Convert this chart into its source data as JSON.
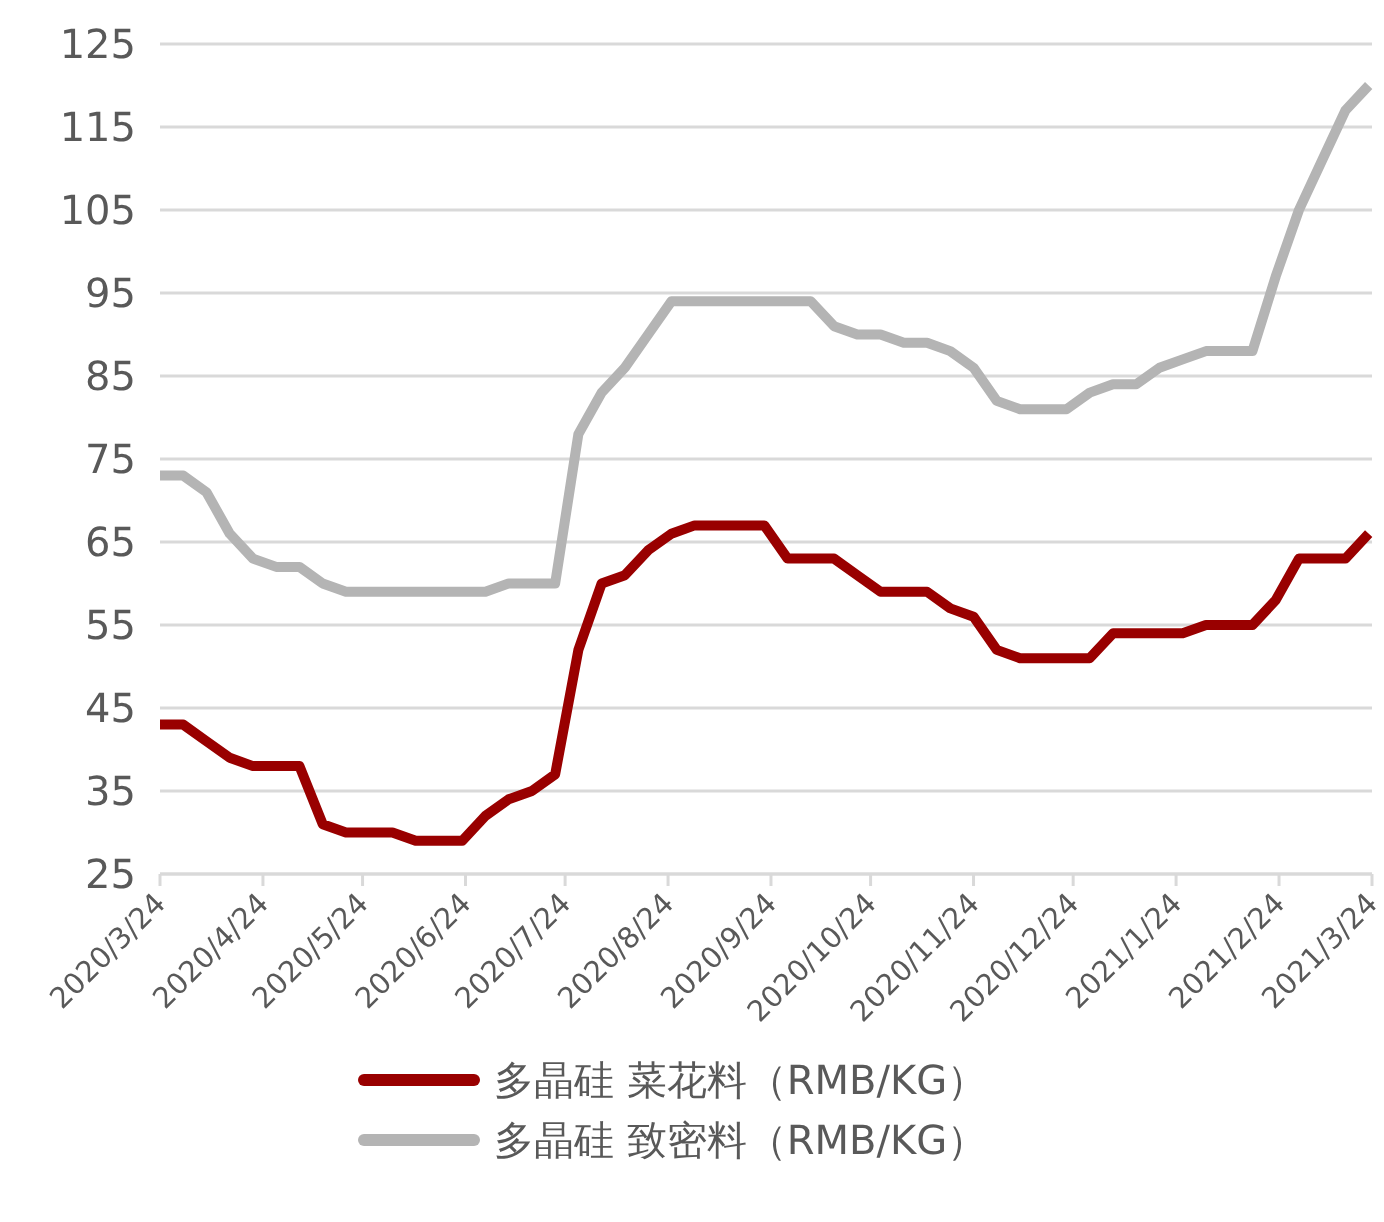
{
  "chart_data": {
    "type": "line",
    "x": [
      "2020-03-24",
      "2020-03-31",
      "2020-04-07",
      "2020-04-14",
      "2020-04-21",
      "2020-04-28",
      "2020-05-05",
      "2020-05-12",
      "2020-05-19",
      "2020-05-26",
      "2020-06-02",
      "2020-06-09",
      "2020-06-16",
      "2020-06-23",
      "2020-06-30",
      "2020-07-07",
      "2020-07-14",
      "2020-07-21",
      "2020-07-28",
      "2020-08-04",
      "2020-08-11",
      "2020-08-18",
      "2020-08-25",
      "2020-09-01",
      "2020-09-08",
      "2020-09-15",
      "2020-09-22",
      "2020-09-29",
      "2020-10-06",
      "2020-10-13",
      "2020-10-20",
      "2020-10-27",
      "2020-11-03",
      "2020-11-10",
      "2020-11-17",
      "2020-11-24",
      "2020-12-01",
      "2020-12-08",
      "2020-12-15",
      "2020-12-22",
      "2020-12-29",
      "2021-01-05",
      "2021-01-12",
      "2021-01-19",
      "2021-01-26",
      "2021-02-02",
      "2021-02-09",
      "2021-02-16",
      "2021-02-23",
      "2021-03-02",
      "2021-03-09",
      "2021-03-16",
      "2021-03-23"
    ],
    "series": [
      {
        "name": "多晶硅 菜花料（RMB/KG）",
        "color": "#990000",
        "values": [
          43,
          43,
          41,
          39,
          38,
          38,
          38,
          31,
          30,
          30,
          30,
          29,
          29,
          29,
          32,
          34,
          35,
          37,
          52,
          60,
          61,
          64,
          66,
          67,
          67,
          67,
          67,
          63,
          63,
          63,
          61,
          59,
          59,
          59,
          57,
          56,
          52,
          51,
          51,
          51,
          51,
          54,
          54,
          54,
          54,
          55,
          55,
          55,
          58,
          63,
          63,
          63,
          66
        ]
      },
      {
        "name": "多晶硅 致密料（RMB/KG）",
        "color": "#b4b4b4",
        "values": [
          73,
          73,
          71,
          66,
          63,
          62,
          62,
          60,
          59,
          59,
          59,
          59,
          59,
          59,
          59,
          60,
          60,
          60,
          78,
          83,
          86,
          90,
          94,
          94,
          94,
          94,
          94,
          94,
          94,
          91,
          90,
          90,
          89,
          89,
          88,
          86,
          82,
          81,
          81,
          81,
          83,
          84,
          84,
          86,
          87,
          88,
          88,
          88,
          97,
          105,
          111,
          117,
          120
        ]
      }
    ],
    "xlim": [
      "2020-03-24",
      "2021-03-24"
    ],
    "xticks": [
      {
        "value": "2020-03-24",
        "label": "2020/3/24"
      },
      {
        "value": "2020-04-24",
        "label": "2020/4/24"
      },
      {
        "value": "2020-05-24",
        "label": "2020/5/24"
      },
      {
        "value": "2020-06-24",
        "label": "2020/6/24"
      },
      {
        "value": "2020-07-24",
        "label": "2020/7/24"
      },
      {
        "value": "2020-08-24",
        "label": "2020/8/24"
      },
      {
        "value": "2020-09-24",
        "label": "2020/9/24"
      },
      {
        "value": "2020-10-24",
        "label": "2020/10/24"
      },
      {
        "value": "2020-11-24",
        "label": "2020/11/24"
      },
      {
        "value": "2020-12-24",
        "label": "2020/12/24"
      },
      {
        "value": "2021-01-24",
        "label": "2021/1/24"
      },
      {
        "value": "2021-02-24",
        "label": "2021/2/24"
      },
      {
        "value": "2021-03-24",
        "label": "2021/3/24"
      }
    ],
    "ylim": [
      25,
      125
    ],
    "yticks": [
      25,
      35,
      45,
      55,
      65,
      75,
      85,
      95,
      105,
      115,
      125
    ],
    "grid": "y",
    "legend": "bottom"
  }
}
